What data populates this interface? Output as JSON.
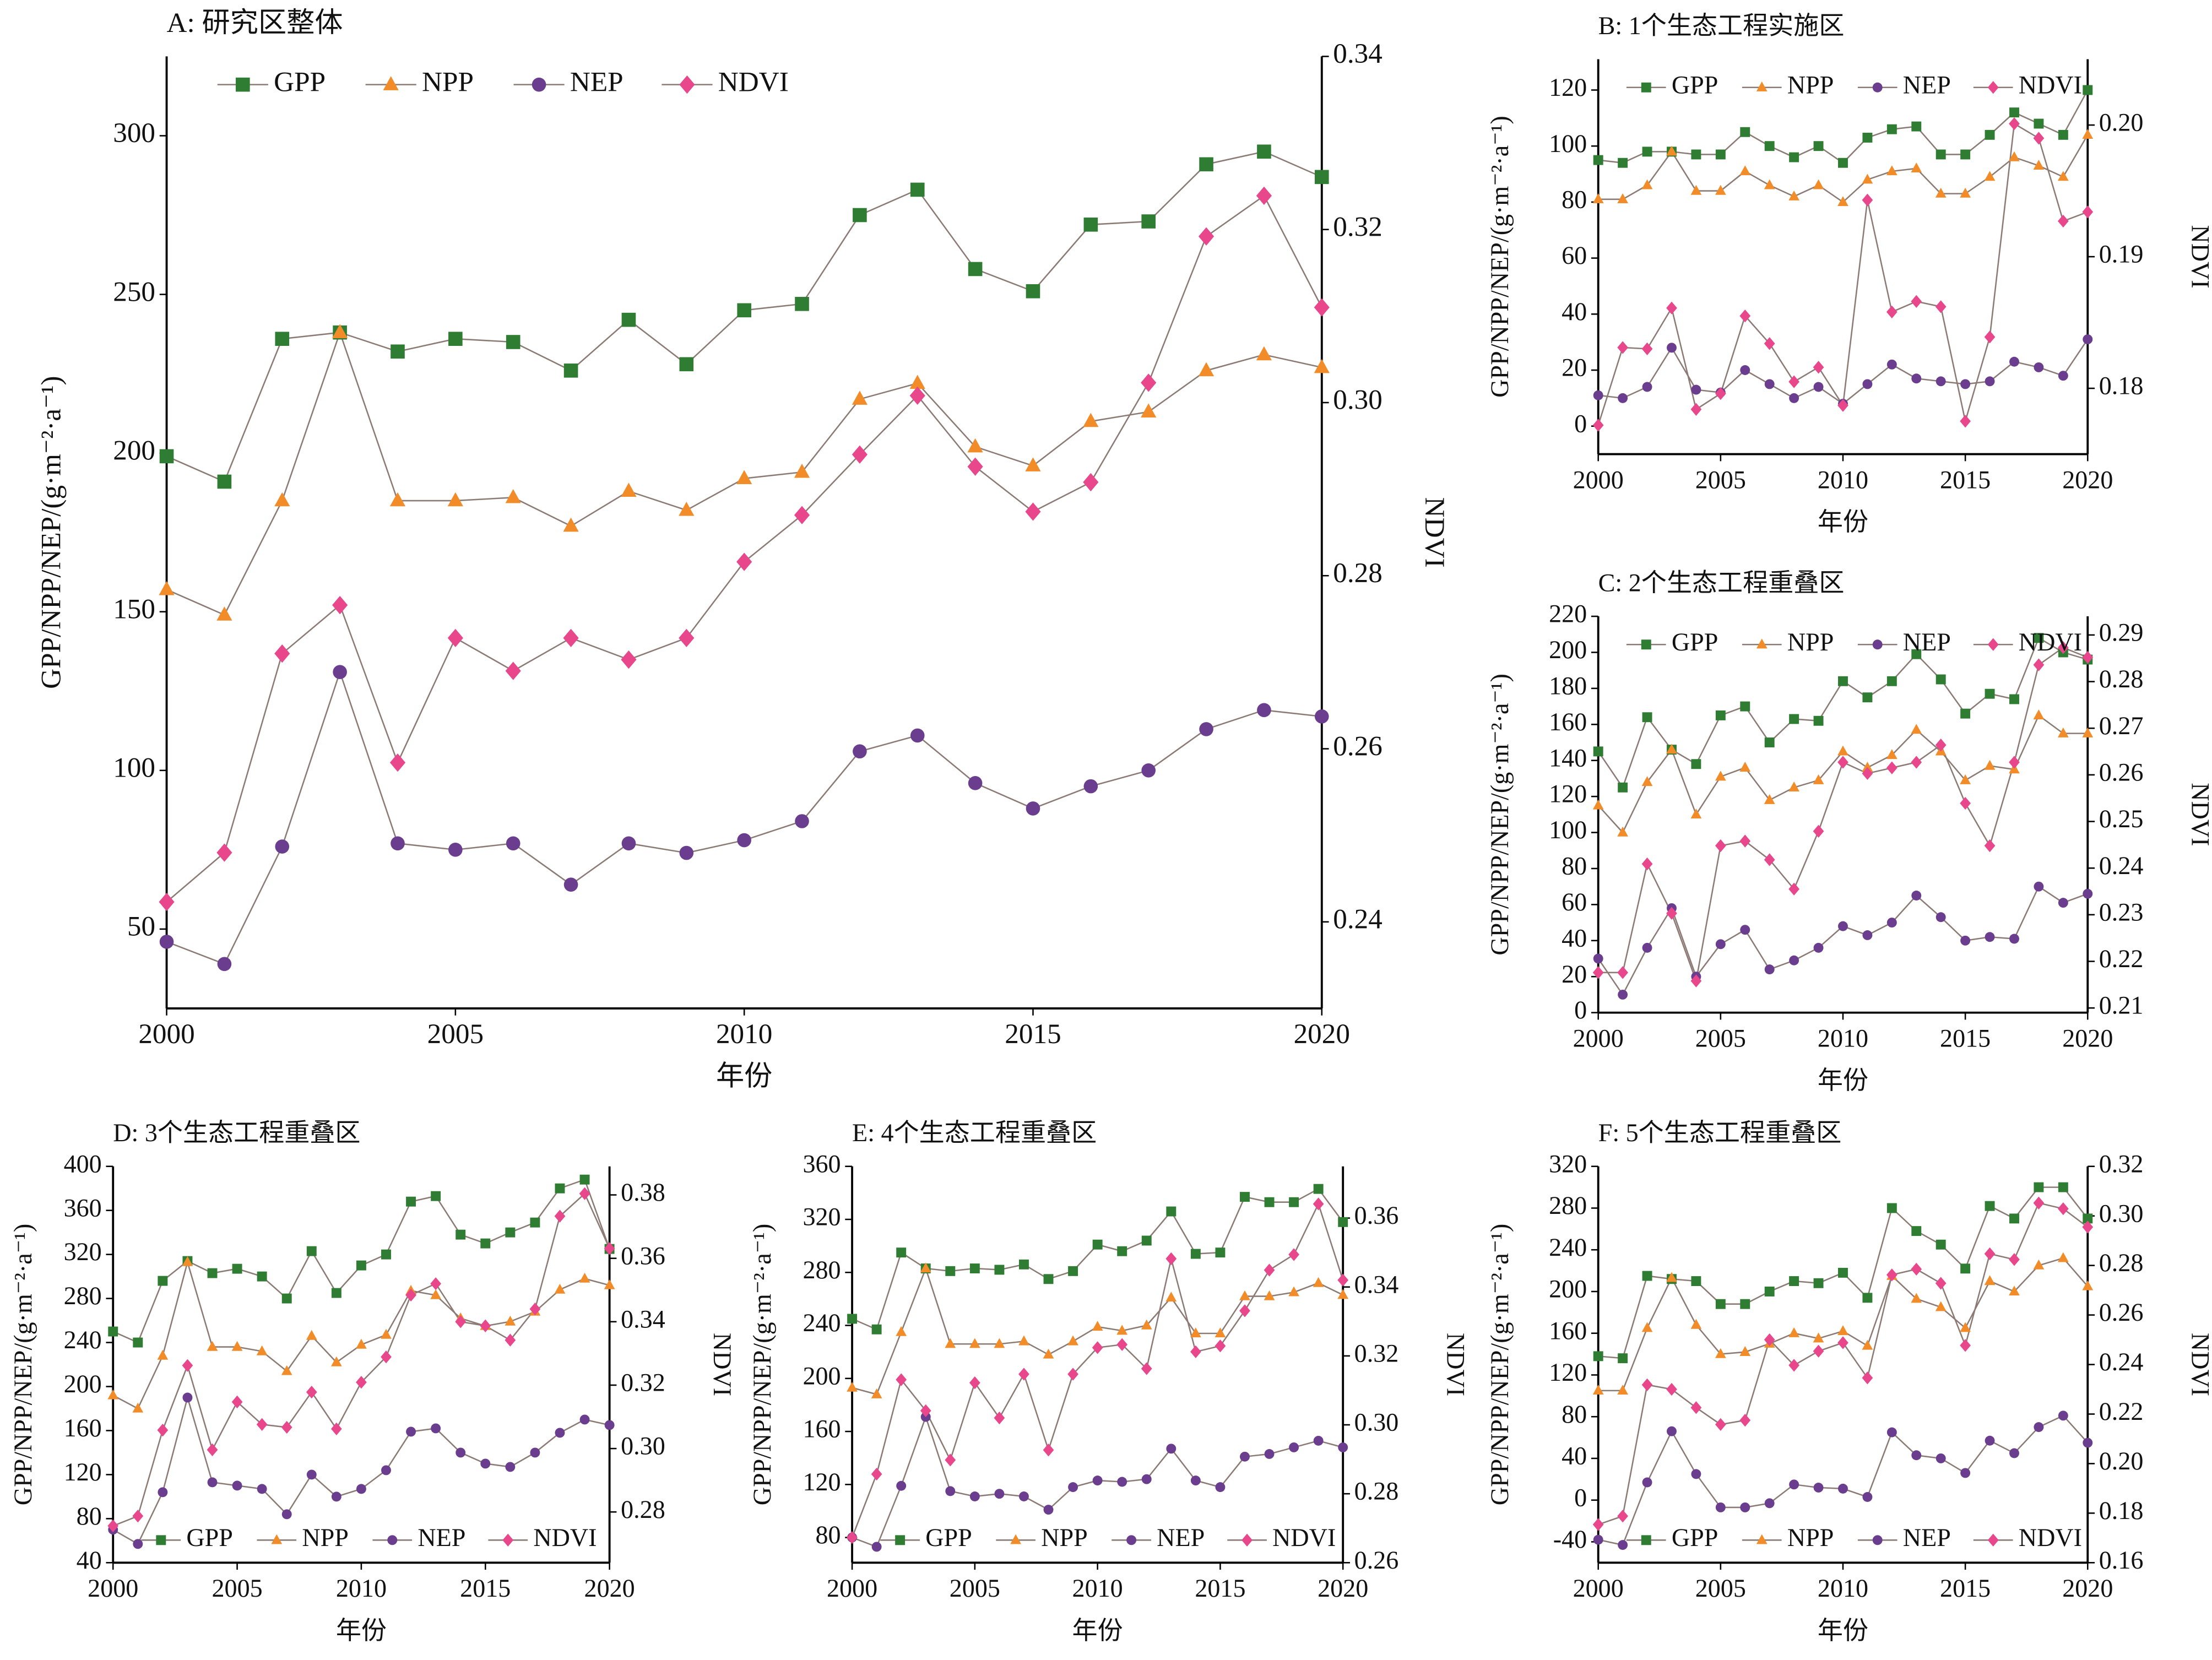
{
  "chart_data": [
    {
      "type": "line",
      "title": "A: 研究区整体",
      "xlabel": "年份",
      "ylabel": "GPP/NPP/NEP/(g·m⁻²·a⁻¹)",
      "y2label": "NDVI",
      "x": [
        2000,
        2001,
        2002,
        2003,
        2004,
        2005,
        2006,
        2007,
        2008,
        2009,
        2010,
        2011,
        2012,
        2013,
        2014,
        2015,
        2016,
        2017,
        2018,
        2019,
        2020
      ],
      "xlim": [
        2000,
        2020
      ],
      "xticks": [
        2000,
        2005,
        2010,
        2015,
        2020
      ],
      "ylim": [
        25,
        325
      ],
      "yticks": [
        50,
        100,
        150,
        200,
        250,
        300
      ],
      "y2lim": [
        0.23,
        0.34
      ],
      "y2ticks": [
        0.24,
        0.26,
        0.28,
        {
          "value": 0.3,
          "label": "0.30"
        },
        0.32,
        0.34
      ],
      "legend": "upper left",
      "grid": false,
      "line_color": "#8c7b75",
      "series": [
        {
          "name": "GPP",
          "color": "#2e7d32",
          "marker": "square",
          "values": [
            199,
            191,
            236,
            238,
            232,
            236,
            235,
            226,
            242,
            228,
            245,
            247,
            275,
            283,
            258,
            251,
            272,
            273,
            291,
            295,
            287
          ]
        },
        {
          "name": "NPP",
          "color": "#f28c28",
          "marker": "triangle",
          "values": [
            157,
            149,
            185,
            238,
            185,
            185,
            186,
            177,
            188,
            182,
            192,
            194,
            217,
            222,
            202,
            196,
            210,
            213,
            226,
            231,
            227
          ]
        },
        {
          "name": "NEP",
          "color": "#6a3d8f",
          "marker": "circle",
          "values": [
            46,
            39,
            76,
            131,
            77,
            75,
            77,
            64,
            77,
            74,
            78,
            84,
            106,
            111,
            96,
            88,
            95,
            100,
            113,
            119,
            117
          ]
        },
        {
          "name": "NDVI",
          "color": "#e8478c",
          "marker": "diamond",
          "axis": "y2",
          "values": [
            0.2423,
            0.248,
            0.271,
            0.2766,
            0.2584,
            0.2728,
            0.269,
            0.2728,
            0.2703,
            0.2728,
            0.2816,
            0.287,
            0.294,
            0.3008,
            0.2926,
            0.2874,
            0.2908,
            0.3023,
            0.3192,
            0.3239,
            0.311
          ]
        }
      ]
    },
    {
      "type": "line",
      "title": "B: 1个生态工程实施区",
      "xlabel": "年份",
      "ylabel": "GPP/NPP/NEP/(g·m⁻²·a⁻¹)",
      "y2label": "NDVI",
      "x": [
        2000,
        2001,
        2002,
        2003,
        2004,
        2005,
        2006,
        2007,
        2008,
        2009,
        2010,
        2011,
        2012,
        2013,
        2014,
        2015,
        2016,
        2017,
        2018,
        2019,
        2020
      ],
      "xlim": [
        2000,
        2020
      ],
      "xticks": [
        2000,
        2005,
        2010,
        2015,
        2020
      ],
      "ylim": [
        -10,
        131
      ],
      "yticks": [
        0,
        20,
        40,
        60,
        80,
        100,
        120
      ],
      "y2lim": [
        0.175,
        0.205
      ],
      "y2ticks": [
        0.18,
        0.19,
        {
          "value": 0.2,
          "label": "0.20"
        }
      ],
      "legend": "upper left",
      "grid": false,
      "line_color": "#8c7b75",
      "series": [
        {
          "name": "GPP",
          "color": "#2e7d32",
          "marker": "square",
          "values": [
            95,
            94,
            98,
            98,
            97,
            97,
            105,
            100,
            96,
            100,
            94,
            103,
            106,
            107,
            97,
            97,
            104,
            112,
            108,
            104,
            120
          ]
        },
        {
          "name": "NPP",
          "color": "#f28c28",
          "marker": "triangle",
          "values": [
            81,
            81,
            86,
            98,
            84,
            84,
            91,
            86,
            82,
            86,
            80,
            88,
            91,
            92,
            83,
            83,
            89,
            96,
            93,
            89,
            104
          ]
        },
        {
          "name": "NEP",
          "color": "#6a3d8f",
          "marker": "circle",
          "values": [
            11,
            10,
            14,
            28,
            13,
            12,
            20,
            15,
            10,
            14,
            8,
            15,
            22,
            17,
            16,
            15,
            16,
            23,
            21,
            18,
            31
          ]
        },
        {
          "name": "NDVI",
          "color": "#e8478c",
          "marker": "diamond",
          "axis": "y2",
          "values": [
            0.1772,
            0.1831,
            0.183,
            0.1861,
            0.1784,
            0.1796,
            0.1855,
            0.1834,
            0.1805,
            0.1816,
            0.1787,
            0.1943,
            0.1858,
            0.1866,
            0.1862,
            0.1775,
            0.1839,
            0.2001,
            0.199,
            0.1927,
            0.1934
          ]
        }
      ]
    },
    {
      "type": "line",
      "title": "C: 2个生态工程重叠区",
      "xlabel": "年份",
      "ylabel": "GPP/NPP/NEP/(g·m⁻²·a⁻¹)",
      "y2label": "NDVI",
      "x": [
        2000,
        2001,
        2002,
        2003,
        2004,
        2005,
        2006,
        2007,
        2008,
        2009,
        2010,
        2011,
        2012,
        2013,
        2014,
        2015,
        2016,
        2017,
        2018,
        2019,
        2020
      ],
      "xlim": [
        2000,
        2020
      ],
      "xticks": [
        2000,
        2005,
        2010,
        2015,
        2020
      ],
      "ylim": [
        0,
        220
      ],
      "yticks": [
        0,
        20,
        40,
        60,
        80,
        100,
        120,
        140,
        160,
        180,
        200,
        220
      ],
      "y2lim": [
        0.209,
        0.294
      ],
      "y2ticks": [
        0.21,
        0.22,
        0.23,
        0.24,
        0.25,
        0.26,
        0.27,
        0.28,
        0.29
      ],
      "legend": "upper left",
      "grid": false,
      "line_color": "#8c7b75",
      "series": [
        {
          "name": "GPP",
          "color": "#2e7d32",
          "marker": "square",
          "values": [
            145,
            125,
            164,
            146,
            138,
            165,
            170,
            150,
            163,
            162,
            184,
            175,
            184,
            199,
            185,
            166,
            177,
            174,
            208,
            200,
            196
          ]
        },
        {
          "name": "NPP",
          "color": "#f28c28",
          "marker": "triangle",
          "values": [
            115,
            100,
            128,
            146,
            110,
            131,
            136,
            118,
            125,
            129,
            145,
            136,
            143,
            157,
            145,
            129,
            137,
            135,
            165,
            155,
            155
          ]
        },
        {
          "name": "NEP",
          "color": "#6a3d8f",
          "marker": "circle",
          "values": [
            30,
            10,
            36,
            58,
            20,
            38,
            46,
            24,
            29,
            36,
            48,
            43,
            50,
            65,
            53,
            40,
            42,
            41,
            70,
            61,
            66
          ]
        },
        {
          "name": "NDVI",
          "color": "#e8478c",
          "marker": "diamond",
          "axis": "y2",
          "values": [
            0.2176,
            0.2176,
            0.2409,
            0.2303,
            0.2158,
            0.2448,
            0.2458,
            0.2418,
            0.2355,
            0.2479,
            0.2627,
            0.2603,
            0.2615,
            0.2627,
            0.2664,
            0.2539,
            0.2448,
            0.2627,
            0.2836,
            0.2873,
            0.2852
          ]
        }
      ]
    },
    {
      "type": "line",
      "title": "D: 3个生态工程重叠区",
      "xlabel": "年份",
      "ylabel": "GPP/NPP/NEP/(g·m⁻²·a⁻¹)",
      "y2label": "NDVI",
      "x": [
        2000,
        2001,
        2002,
        2003,
        2004,
        2005,
        2006,
        2007,
        2008,
        2009,
        2010,
        2011,
        2012,
        2013,
        2014,
        2015,
        2016,
        2017,
        2018,
        2019,
        2020
      ],
      "xlim": [
        2000,
        2020
      ],
      "xticks": [
        2000,
        2005,
        2010,
        2015,
        2020
      ],
      "ylim": [
        40,
        400
      ],
      "yticks": [
        40,
        80,
        120,
        160,
        200,
        240,
        280,
        320,
        360,
        400
      ],
      "y2lim": [
        0.264,
        0.389
      ],
      "y2ticks": [
        0.28,
        {
          "value": 0.3,
          "label": "0.30"
        },
        0.32,
        0.34,
        0.36,
        0.38
      ],
      "legend": "lower left",
      "grid": false,
      "line_color": "#8c7b75",
      "series": [
        {
          "name": "GPP",
          "color": "#2e7d32",
          "marker": "square",
          "values": [
            250,
            240,
            296,
            314,
            303,
            307,
            300,
            280,
            323,
            285,
            310,
            320,
            368,
            373,
            338,
            330,
            340,
            349,
            380,
            388,
            325
          ]
        },
        {
          "name": "NPP",
          "color": "#f28c28",
          "marker": "triangle",
          "values": [
            192,
            180,
            228,
            313,
            236,
            236,
            232,
            214,
            246,
            222,
            238,
            247,
            287,
            283,
            262,
            255,
            259,
            268,
            288,
            298,
            292
          ]
        },
        {
          "name": "NEP",
          "color": "#6a3d8f",
          "marker": "circle",
          "values": [
            70,
            57,
            104,
            190,
            113,
            110,
            107,
            84,
            120,
            100,
            107,
            124,
            159,
            162,
            140,
            130,
            127,
            140,
            158,
            170,
            165
          ]
        },
        {
          "name": "NDVI",
          "color": "#e8478c",
          "marker": "diamond",
          "axis": "y2",
          "values": [
            0.2756,
            0.2787,
            0.3058,
            0.3262,
            0.2996,
            0.3147,
            0.3076,
            0.3067,
            0.3178,
            0.3062,
            0.3209,
            0.3289,
            0.3484,
            0.352,
            0.34,
            0.3387,
            0.3342,
            0.344,
            0.3733,
            0.3804,
            0.3631
          ]
        }
      ]
    },
    {
      "type": "line",
      "title": "E: 4个生态工程重叠区",
      "xlabel": "年份",
      "ylabel": "GPP/NPP/NEP/(g·m⁻²·a⁻¹)",
      "y2label": "NDVI",
      "x": [
        2000,
        2001,
        2002,
        2003,
        2004,
        2005,
        2006,
        2007,
        2008,
        2009,
        2010,
        2011,
        2012,
        2013,
        2014,
        2015,
        2016,
        2017,
        2018,
        2019,
        2020
      ],
      "xlim": [
        2000,
        2020
      ],
      "xticks": [
        2000,
        2005,
        2010,
        2015,
        2020
      ],
      "ylim": [
        61,
        360
      ],
      "yticks": [
        80,
        120,
        160,
        200,
        240,
        280,
        320,
        360
      ],
      "y2lim": [
        0.26,
        0.375
      ],
      "y2ticks": [
        0.26,
        0.28,
        {
          "value": 0.3,
          "label": "0.30"
        },
        0.32,
        0.34,
        0.36
      ],
      "legend": "lower left",
      "grid": false,
      "line_color": "#8c7b75",
      "series": [
        {
          "name": "GPP",
          "color": "#2e7d32",
          "marker": "square",
          "values": [
            245,
            237,
            295,
            283,
            281,
            283,
            282,
            286,
            275,
            281,
            301,
            296,
            304,
            326,
            294,
            295,
            337,
            333,
            333,
            343,
            318
          ]
        },
        {
          "name": "NPP",
          "color": "#f28c28",
          "marker": "triangle",
          "values": [
            193,
            188,
            235,
            283,
            226,
            226,
            226,
            228,
            218,
            228,
            239,
            236,
            240,
            261,
            234,
            234,
            262,
            262,
            265,
            272,
            263
          ]
        },
        {
          "name": "NEP",
          "color": "#6a3d8f",
          "marker": "circle",
          "values": [
            80,
            73,
            119,
            171,
            115,
            111,
            113,
            111,
            101,
            118,
            123,
            122,
            124,
            147,
            123,
            118,
            141,
            143,
            148,
            153,
            148
          ]
        },
        {
          "name": "NDVI",
          "color": "#e8478c",
          "marker": "diamond",
          "axis": "y2",
          "values": [
            0.2673,
            0.2857,
            0.3131,
            0.3041,
            0.2898,
            0.3122,
            0.302,
            0.3147,
            0.2927,
            0.3147,
            0.3224,
            0.3233,
            0.3163,
            0.3482,
            0.3212,
            0.3229,
            0.3331,
            0.3449,
            0.3494,
            0.3641,
            0.342
          ]
        }
      ]
    },
    {
      "type": "line",
      "title": "F: 5个生态工程重叠区",
      "xlabel": "年份",
      "ylabel": "GPP/NPP/NEP/(g·m⁻²·a⁻¹)",
      "y2label": "NDVI",
      "x": [
        2000,
        2001,
        2002,
        2003,
        2004,
        2005,
        2006,
        2007,
        2008,
        2009,
        2010,
        2011,
        2012,
        2013,
        2014,
        2015,
        2016,
        2017,
        2018,
        2019,
        2020
      ],
      "xlim": [
        2000,
        2020
      ],
      "xticks": [
        2000,
        2005,
        2010,
        2015,
        2020
      ],
      "ylim": [
        -60,
        320
      ],
      "yticks": [
        -40,
        0,
        40,
        80,
        120,
        160,
        200,
        240,
        280,
        320
      ],
      "y2lim": [
        0.16,
        0.32
      ],
      "y2ticks": [
        0.16,
        0.18,
        {
          "value": 0.2,
          "label": "0.20"
        },
        0.22,
        0.24,
        0.26,
        0.28,
        {
          "value": 0.3,
          "label": "0.30"
        },
        0.32
      ],
      "legend": "lower left",
      "grid": false,
      "line_color": "#8c7b75",
      "series": [
        {
          "name": "GPP",
          "color": "#2e7d32",
          "marker": "square",
          "values": [
            138,
            136,
            215,
            212,
            210,
            188,
            188,
            200,
            210,
            208,
            218,
            194,
            280,
            258,
            245,
            222,
            282,
            270,
            300,
            300,
            270
          ]
        },
        {
          "name": "NPP",
          "color": "#f28c28",
          "marker": "triangle",
          "values": [
            105,
            105,
            165,
            213,
            168,
            140,
            142,
            150,
            160,
            155,
            162,
            148,
            215,
            193,
            185,
            165,
            210,
            200,
            225,
            232,
            205
          ]
        },
        {
          "name": "NEP",
          "color": "#6a3d8f",
          "marker": "circle",
          "values": [
            -38,
            -43,
            17,
            66,
            25,
            -7,
            -7,
            -3,
            15,
            12,
            11,
            3,
            65,
            43,
            40,
            26,
            57,
            45,
            70,
            81,
            55
          ]
        },
        {
          "name": "NDVI",
          "color": "#e8478c",
          "marker": "diamond",
          "axis": "y2",
          "values": [
            0.1754,
            0.1788,
            0.2318,
            0.23,
            0.2226,
            0.2158,
            0.2175,
            0.25,
            0.2397,
            0.2454,
            0.2488,
            0.2346,
            0.2762,
            0.2785,
            0.2728,
            0.2477,
            0.2847,
            0.2824,
            0.3052,
            0.3029,
            0.2955
          ]
        }
      ]
    }
  ]
}
